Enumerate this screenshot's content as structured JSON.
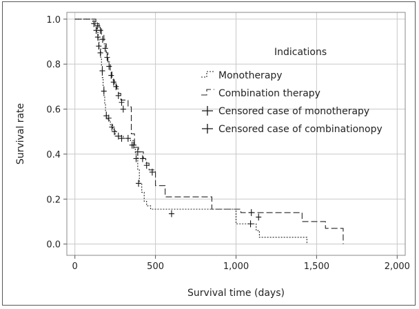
{
  "chart_data": {
    "type": "line",
    "title": "",
    "xlabel": "Survival time (days)",
    "ylabel": "Survival rate",
    "xlim": [
      -50,
      2050
    ],
    "ylim": [
      -0.05,
      1.03
    ],
    "xticks": [
      0,
      500,
      1000,
      1500,
      2000
    ],
    "xtick_labels": [
      "0",
      "500",
      "1,000",
      "1,500",
      "2,000"
    ],
    "yticks": [
      0.0,
      0.2,
      0.4,
      0.6,
      0.8,
      1.0
    ],
    "ytick_labels": [
      "0.0",
      "0.2",
      "0.4",
      "0.6",
      "0.8",
      "1.0"
    ],
    "grid": true,
    "legend_title": "Indications",
    "legend_position": "top-right",
    "legend": [
      {
        "label": "Monotherapy",
        "kind": "dotted-line"
      },
      {
        "label": "Combination therapy",
        "kind": "dashed-line"
      },
      {
        "label": "Censored case of monotherapy",
        "kind": "cross"
      },
      {
        "label": "Censored case of combinationopy",
        "kind": "cross"
      }
    ],
    "series": [
      {
        "name": "Monotherapy",
        "style": "dotted",
        "steps": [
          [
            0,
            1.0
          ],
          [
            110,
            0.99
          ],
          [
            125,
            0.97
          ],
          [
            135,
            0.94
          ],
          [
            145,
            0.91
          ],
          [
            150,
            0.87
          ],
          [
            160,
            0.83
          ],
          [
            165,
            0.79
          ],
          [
            170,
            0.74
          ],
          [
            175,
            0.7
          ],
          [
            180,
            0.66
          ],
          [
            185,
            0.62
          ],
          [
            190,
            0.59
          ],
          [
            195,
            0.56
          ],
          [
            205,
            0.55
          ],
          [
            220,
            0.53
          ],
          [
            235,
            0.51
          ],
          [
            250,
            0.48
          ],
          [
            300,
            0.47
          ],
          [
            345,
            0.46
          ],
          [
            365,
            0.43
          ],
          [
            375,
            0.4
          ],
          [
            390,
            0.33
          ],
          [
            400,
            0.27
          ],
          [
            415,
            0.23
          ],
          [
            430,
            0.19
          ],
          [
            445,
            0.17
          ],
          [
            470,
            0.155
          ],
          [
            1000,
            0.09
          ],
          [
            1125,
            0.06
          ],
          [
            1145,
            0.03
          ],
          [
            1440,
            0.0
          ]
        ],
        "end": 1440,
        "censored": [
          [
            118,
            0.98
          ],
          [
            132,
            0.95
          ],
          [
            142,
            0.92
          ],
          [
            148,
            0.88
          ],
          [
            158,
            0.85
          ],
          [
            170,
            0.77
          ],
          [
            180,
            0.68
          ],
          [
            195,
            0.57
          ],
          [
            210,
            0.56
          ],
          [
            230,
            0.52
          ],
          [
            245,
            0.5
          ],
          [
            270,
            0.48
          ],
          [
            290,
            0.47
          ],
          [
            330,
            0.47
          ],
          [
            355,
            0.44
          ],
          [
            380,
            0.38
          ],
          [
            395,
            0.27
          ],
          [
            600,
            0.135
          ],
          [
            1090,
            0.09
          ]
        ]
      },
      {
        "name": "Combination therapy",
        "style": "dashed",
        "steps": [
          [
            0,
            1.0
          ],
          [
            130,
            0.98
          ],
          [
            150,
            0.96
          ],
          [
            165,
            0.93
          ],
          [
            180,
            0.89
          ],
          [
            195,
            0.85
          ],
          [
            205,
            0.81
          ],
          [
            220,
            0.77
          ],
          [
            230,
            0.73
          ],
          [
            245,
            0.71
          ],
          [
            260,
            0.69
          ],
          [
            270,
            0.67
          ],
          [
            285,
            0.64
          ],
          [
            330,
            0.61
          ],
          [
            350,
            0.49
          ],
          [
            370,
            0.43
          ],
          [
            395,
            0.41
          ],
          [
            425,
            0.38
          ],
          [
            440,
            0.36
          ],
          [
            460,
            0.33
          ],
          [
            500,
            0.26
          ],
          [
            560,
            0.21
          ],
          [
            850,
            0.155
          ],
          [
            1030,
            0.14
          ],
          [
            1410,
            0.1
          ],
          [
            1555,
            0.07
          ],
          [
            1665,
            0.0
          ]
        ],
        "end": 1665,
        "censored": [
          [
            140,
            0.97
          ],
          [
            158,
            0.95
          ],
          [
            172,
            0.91
          ],
          [
            188,
            0.87
          ],
          [
            200,
            0.83
          ],
          [
            212,
            0.79
          ],
          [
            225,
            0.75
          ],
          [
            240,
            0.72
          ],
          [
            255,
            0.7
          ],
          [
            270,
            0.66
          ],
          [
            290,
            0.63
          ],
          [
            300,
            0.6
          ],
          [
            365,
            0.44
          ],
          [
            390,
            0.41
          ],
          [
            420,
            0.38
          ],
          [
            445,
            0.35
          ],
          [
            480,
            0.32
          ],
          [
            1095,
            0.14
          ],
          [
            1140,
            0.12
          ]
        ]
      }
    ]
  }
}
